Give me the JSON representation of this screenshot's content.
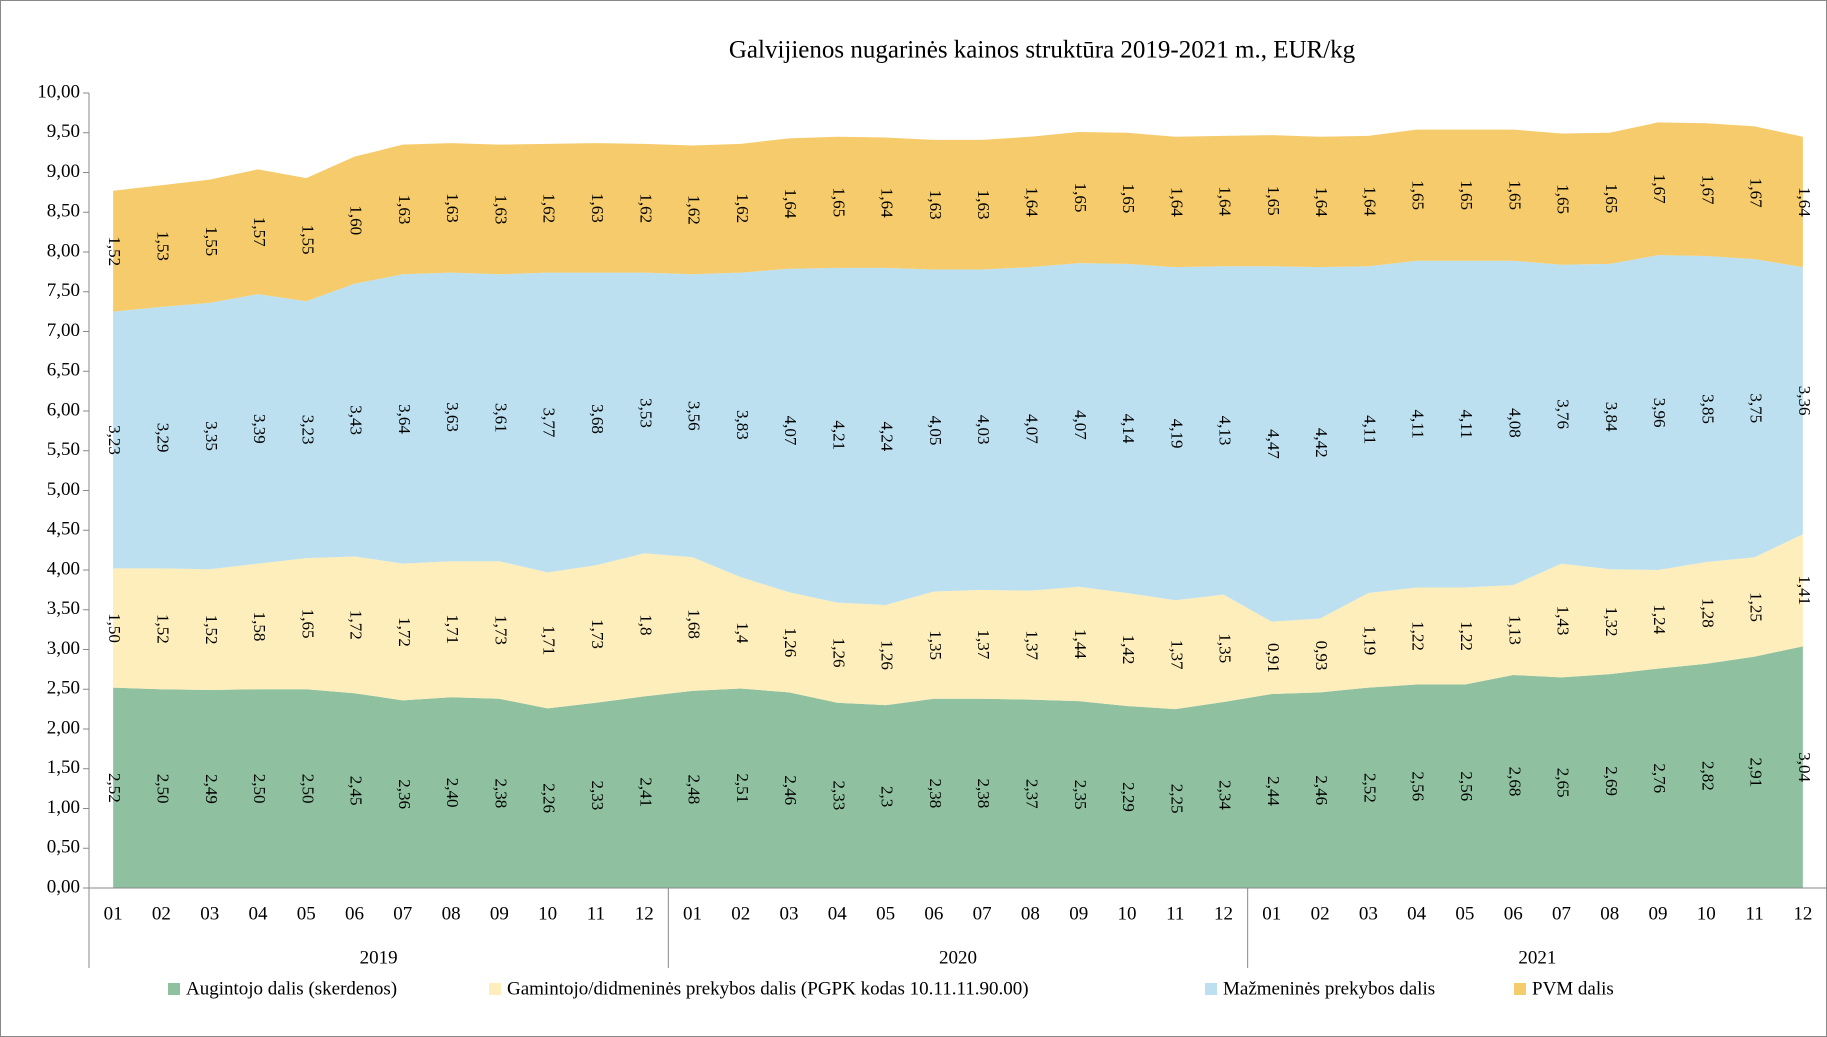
{
  "chart_data": {
    "type": "stacked_area",
    "title": "Galvijienos nugarinės kainos struktūra 2019-2021 m., EUR/kg",
    "categories": [
      "01",
      "02",
      "03",
      "04",
      "05",
      "06",
      "07",
      "08",
      "09",
      "10",
      "11",
      "12",
      "01",
      "02",
      "03",
      "04",
      "05",
      "06",
      "07",
      "08",
      "09",
      "10",
      "11",
      "12",
      "01",
      "02",
      "03",
      "04",
      "05",
      "06",
      "07",
      "08",
      "09",
      "10",
      "11",
      "12"
    ],
    "groups": [
      "2019",
      "2020",
      "2021"
    ],
    "ylim": [
      0,
      10
    ],
    "yticks": [
      {
        "value": 0,
        "label": "0,00"
      },
      {
        "value": 0.5,
        "label": "0,50"
      },
      {
        "value": 1,
        "label": "1,00"
      },
      {
        "value": 1.5,
        "label": "1,50"
      },
      {
        "value": 2,
        "label": "2,00"
      },
      {
        "value": 2.5,
        "label": "2,50"
      },
      {
        "value": 3,
        "label": "3,00"
      },
      {
        "value": 3.5,
        "label": "3,50"
      },
      {
        "value": 4,
        "label": "4,00"
      },
      {
        "value": 4.5,
        "label": "4,50"
      },
      {
        "value": 5,
        "label": "5,00"
      },
      {
        "value": 5.5,
        "label": "5,50"
      },
      {
        "value": 6,
        "label": "6,00"
      },
      {
        "value": 6.5,
        "label": "6,50"
      },
      {
        "value": 7,
        "label": "7,00"
      },
      {
        "value": 7.5,
        "label": "7,50"
      },
      {
        "value": 8,
        "label": "8,00"
      },
      {
        "value": 8.5,
        "label": "8,50"
      },
      {
        "value": 9,
        "label": "9,00"
      },
      {
        "value": 9.5,
        "label": "9,50"
      },
      {
        "value": 10,
        "label": "10,00"
      }
    ],
    "grid": false,
    "legend": "bottom",
    "series": [
      {
        "name": "Augintojo dalis (skerdenos)",
        "color": "#8fc1a0",
        "values": [
          2.52,
          2.5,
          2.49,
          2.5,
          2.5,
          2.45,
          2.36,
          2.4,
          2.38,
          2.26,
          2.33,
          2.41,
          2.48,
          2.51,
          2.46,
          2.33,
          2.3,
          2.38,
          2.38,
          2.37,
          2.35,
          2.29,
          2.25,
          2.34,
          2.44,
          2.46,
          2.52,
          2.56,
          2.56,
          2.68,
          2.65,
          2.69,
          2.76,
          2.82,
          2.91,
          3.04
        ],
        "value_labels": [
          "2,52",
          "2,50",
          "2,49",
          "2,50",
          "2,50",
          "2,45",
          "2,36",
          "2,40",
          "2,38",
          "2,26",
          "2,33",
          "2,41",
          "2,48",
          "2,51",
          "2,46",
          "2,33",
          "2,3",
          "2,38",
          "2,38",
          "2,37",
          "2,35",
          "2,29",
          "2,25",
          "2,34",
          "2,44",
          "2,46",
          "2,52",
          "2,56",
          "2,56",
          "2,68",
          "2,65",
          "2,69",
          "2,76",
          "2,82",
          "2,91",
          "3,04"
        ]
      },
      {
        "name": "Gamintojo/didmeninės prekybos dalis (PGPK kodas 10.11.11.90.00)",
        "color": "#fdeebb",
        "values": [
          1.5,
          1.52,
          1.52,
          1.58,
          1.65,
          1.72,
          1.72,
          1.71,
          1.73,
          1.71,
          1.73,
          1.8,
          1.68,
          1.4,
          1.26,
          1.26,
          1.26,
          1.35,
          1.37,
          1.37,
          1.44,
          1.42,
          1.37,
          1.35,
          0.91,
          0.93,
          1.19,
          1.22,
          1.22,
          1.13,
          1.43,
          1.32,
          1.24,
          1.28,
          1.25,
          1.41
        ],
        "value_labels": [
          "1,50",
          "1,52",
          "1,52",
          "1,58",
          "1,65",
          "1,72",
          "1,72",
          "1,71",
          "1,73",
          "1,71",
          "1,73",
          "1,8",
          "1,68",
          "1,4",
          "1,26",
          "1,26",
          "1,26",
          "1,35",
          "1,37",
          "1,37",
          "1,44",
          "1,42",
          "1,37",
          "1,35",
          "0,91",
          "0,93",
          "1,19",
          "1,22",
          "1,22",
          "1,13",
          "1,43",
          "1,32",
          "1,24",
          "1,28",
          "1,25",
          "1,41"
        ]
      },
      {
        "name": "Mažmeninės prekybos dalis",
        "color": "#bde0f0",
        "values": [
          3.23,
          3.29,
          3.35,
          3.39,
          3.23,
          3.43,
          3.64,
          3.63,
          3.61,
          3.77,
          3.68,
          3.53,
          3.56,
          3.83,
          4.07,
          4.21,
          4.24,
          4.05,
          4.03,
          4.07,
          4.07,
          4.14,
          4.19,
          4.13,
          4.47,
          4.42,
          4.11,
          4.11,
          4.11,
          4.08,
          3.76,
          3.84,
          3.96,
          3.85,
          3.75,
          3.36
        ],
        "value_labels": [
          "3,23",
          "3,29",
          "3,35",
          "3,39",
          "3,23",
          "3,43",
          "3,64",
          "3,63",
          "3,61",
          "3,77",
          "3,68",
          "3,53",
          "3,56",
          "3,83",
          "4,07",
          "4,21",
          "4,24",
          "4,05",
          "4,03",
          "4,07",
          "4,07",
          "4,14",
          "4,19",
          "4,13",
          "4,47",
          "4,42",
          "4,11",
          "4,11",
          "4,11",
          "4,08",
          "3,76",
          "3,84",
          "3,96",
          "3,85",
          "3,75",
          "3,36"
        ]
      },
      {
        "name": "PVM dalis",
        "color": "#f5cb6b",
        "values": [
          1.52,
          1.53,
          1.55,
          1.57,
          1.55,
          1.6,
          1.63,
          1.63,
          1.63,
          1.62,
          1.63,
          1.62,
          1.62,
          1.62,
          1.64,
          1.65,
          1.64,
          1.63,
          1.63,
          1.64,
          1.65,
          1.65,
          1.64,
          1.64,
          1.65,
          1.64,
          1.64,
          1.65,
          1.65,
          1.65,
          1.65,
          1.65,
          1.67,
          1.67,
          1.67,
          1.64
        ],
        "value_labels": [
          "1,52",
          "1,53",
          "1,55",
          "1,57",
          "1,55",
          "1,60",
          "1,63",
          "1,63",
          "1,63",
          "1,62",
          "1,63",
          "1,62",
          "1,62",
          "1,62",
          "1,64",
          "1,65",
          "1,64",
          "1,63",
          "1,63",
          "1,64",
          "1,65",
          "1,65",
          "1,64",
          "1,64",
          "1,65",
          "1,64",
          "1,64",
          "1,65",
          "1,65",
          "1,65",
          "1,65",
          "1,65",
          "1,67",
          "1,67",
          "1,67",
          "1,64"
        ]
      }
    ]
  }
}
